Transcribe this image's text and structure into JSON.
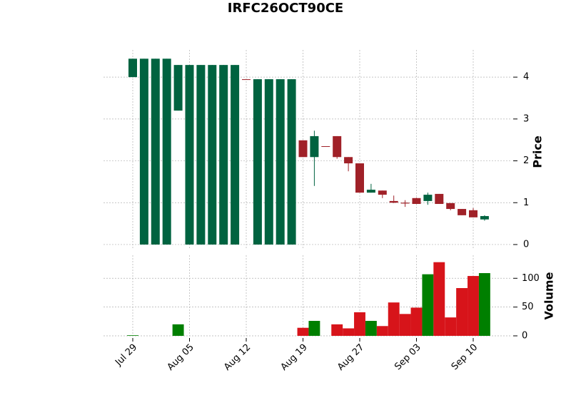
{
  "chart_data": {
    "type": "candlestick",
    "title": "IRFC26OCT90CE",
    "ylabel": "Price",
    "categories": [
      "Jul 29",
      null,
      null,
      null,
      null,
      "Aug 05",
      null,
      null,
      null,
      null,
      "Aug 12",
      null,
      null,
      null,
      null,
      "Aug 19",
      null,
      null,
      null,
      null,
      "Aug 27",
      null,
      null,
      null,
      null,
      "Sep 03",
      null,
      null,
      null,
      null,
      "Sep 10",
      null
    ],
    "open": [
      4.0,
      0,
      0,
      0,
      3.2,
      0,
      0,
      0,
      0,
      0,
      3.95,
      0,
      0,
      0,
      0,
      2.49,
      2.09,
      2.35,
      2.59,
      2.09,
      1.94,
      1.24,
      1.29,
      1.04,
      1.0,
      1.11,
      1.04,
      1.21,
      0.99,
      0.85,
      0.82,
      0.6
    ],
    "high": [
      4.44,
      4.44,
      4.44,
      4.44,
      4.29,
      4.29,
      4.29,
      4.29,
      4.29,
      4.29,
      3.95,
      3.95,
      3.95,
      3.95,
      3.95,
      2.49,
      2.72,
      2.35,
      2.59,
      2.09,
      1.94,
      1.45,
      1.29,
      1.17,
      1.06,
      1.12,
      1.24,
      1.21,
      0.99,
      0.85,
      0.87,
      0.7
    ],
    "low": [
      4.0,
      0,
      0,
      0,
      3.2,
      0,
      0,
      0,
      0,
      0,
      3.95,
      0,
      0,
      0,
      0,
      2.09,
      1.4,
      2.35,
      2.05,
      1.75,
      1.24,
      1.24,
      1.11,
      0.99,
      0.9,
      0.97,
      0.95,
      0.97,
      0.82,
      0.7,
      0.65,
      0.57
    ],
    "close": [
      4.44,
      4.44,
      4.44,
      4.44,
      4.29,
      4.29,
      4.29,
      4.29,
      4.29,
      4.29,
      3.95,
      3.95,
      3.95,
      3.95,
      3.95,
      2.09,
      2.59,
      2.35,
      2.09,
      1.94,
      1.24,
      1.31,
      1.19,
      1.0,
      0.98,
      0.97,
      1.19,
      0.97,
      0.85,
      0.7,
      0.65,
      0.68
    ],
    "up_color": "#006340",
    "down_color": "#a02128",
    "ylim": [
      -0.12,
      4.65
    ],
    "yticks": [
      0,
      1,
      2,
      3,
      4
    ],
    "grid": true,
    "volume": {
      "label": "Volume",
      "values": [
        1,
        0,
        0,
        0,
        20,
        0,
        0,
        0,
        0,
        0,
        0,
        0,
        0,
        0,
        0,
        14,
        26,
        0,
        20,
        13,
        41,
        26,
        17,
        58,
        38,
        49,
        107,
        128,
        32,
        83,
        104,
        109
      ],
      "up_color": "#007f00",
      "down_color": "#d7141a",
      "ylim": [
        0,
        140
      ],
      "yticks": [
        0,
        50,
        100
      ]
    }
  }
}
